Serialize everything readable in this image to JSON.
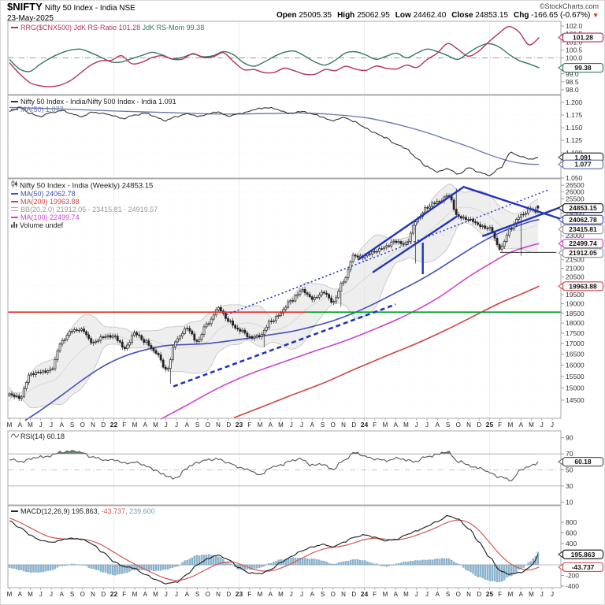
{
  "header": {
    "symbol": "$NIFTY",
    "name": "Nifty 50 Index - India NSE",
    "date": "23-May-2025",
    "open_label": "Open",
    "open": "25005.35",
    "high_label": "High",
    "high": "25062.95",
    "low_label": "Low",
    "low": "24462.40",
    "close_label": "Close",
    "close": "24853.15",
    "chg_label": "Chg",
    "chg": "-166.65 (-0.67%)",
    "chg_dir": "▼",
    "credit": "©StockCharts.com"
  },
  "colors": {
    "rrg_ratio": "#b33356",
    "rrg_mom": "#35795c",
    "ratio_line": "#333333",
    "ratio_ma": "#6677aa",
    "price": "#222222",
    "ma50": "#4450b8",
    "ma100": "#cc44cc",
    "ma200": "#cc4444",
    "bb_fill": "#e3e3e3",
    "bb_edge": "#c6c6c6",
    "bb_label": "#999999",
    "green_line": "#00a033",
    "red_line": "#e03333",
    "anno_blue": "#2233bb",
    "anno_dark": "#333333",
    "rsi": "#555555",
    "rsi_fill": "#5a7d5a",
    "macd": "#222222",
    "macd_signal": "#d05858",
    "macd_hist": "#8fb8d0",
    "macd_hist_edge": "#6f9dbd",
    "grid": "#ececec",
    "panel_border": "#a8a8a8",
    "axis_text": "#333333"
  },
  "x_axis": {
    "months": [
      "M",
      "A",
      "M",
      "J",
      "J",
      "A",
      "S",
      "O",
      "N",
      "D",
      "22",
      "F",
      "M",
      "A",
      "M",
      "J",
      "J",
      "A",
      "S",
      "O",
      "N",
      "D",
      "23",
      "F",
      "M",
      "A",
      "M",
      "J",
      "J",
      "A",
      "S",
      "O",
      "N",
      "D",
      "24",
      "F",
      "M",
      "A",
      "M",
      "J",
      "J",
      "A",
      "S",
      "O",
      "N",
      "D",
      "25",
      "F",
      "M",
      "A",
      "M",
      "J",
      "J"
    ]
  },
  "chart_data": [
    {
      "type": "line",
      "panel": "rrg",
      "legend": {
        "title": "RRG($CNX500)",
        "s1": "JdK RS-Ratio",
        "v1": "101.28",
        "s2": "JdK RS-Mom",
        "v2": "99.38"
      },
      "yticks": [
        "102.0",
        "101.5",
        "101.0",
        "100.5",
        "100.0",
        "99.5",
        "99.0",
        "98.5",
        "98.0"
      ],
      "ref": 100.0,
      "series": [
        {
          "name": "JdK RS-Ratio",
          "last": 101.28,
          "values": [
            99.7,
            99.0,
            98.45,
            98.25,
            98.2,
            98.3,
            98.6,
            99.1,
            99.6,
            99.85,
            99.85,
            100.2,
            99.5,
            99.8,
            100.1,
            100.15,
            99.8,
            100.0,
            100.45,
            99.7,
            100.4,
            100.25,
            99.2,
            99.35,
            99.15,
            98.95,
            99.4,
            99.25,
            99.0,
            98.9,
            99.3,
            99.15,
            99.5,
            99.3,
            99.2,
            99.5,
            99.35,
            99.3,
            99.55,
            99.4,
            99.9,
            100.3,
            100.9,
            100.55,
            100.1,
            100.4,
            101.0,
            101.55,
            102.0,
            101.6,
            100.7,
            101.28
          ]
        },
        {
          "name": "JdK RS-Mom",
          "last": 99.38,
          "values": [
            99.9,
            99.3,
            99.15,
            99.6,
            100.0,
            100.3,
            100.5,
            100.55,
            100.3,
            100.0,
            99.7,
            99.75,
            100.0,
            100.2,
            100.4,
            100.1,
            99.85,
            100.15,
            100.3,
            99.9,
            100.35,
            100.45,
            99.9,
            99.4,
            99.6,
            100.0,
            100.3,
            100.5,
            100.2,
            99.8,
            99.5,
            99.8,
            100.3,
            100.4,
            100.2,
            99.9,
            100.1,
            100.3,
            100.0,
            100.3,
            100.55,
            100.4,
            100.15,
            99.9,
            100.3,
            100.7,
            100.9,
            100.7,
            100.2,
            99.8,
            99.6,
            99.38
          ]
        }
      ],
      "bubbles": [
        {
          "text": "101.28",
          "ck": "rrg_ratio"
        },
        {
          "text": "99.38",
          "ck": "rrg_mom"
        }
      ]
    },
    {
      "type": "line",
      "panel": "ratio",
      "legend": {
        "l1": "Nifty 50 Index - India/Nifty 500 Index - India",
        "v1": "1.091",
        "l2": "MA(50)",
        "v2": "1.077"
      },
      "yticks": [
        "1.200",
        "1.175",
        "1.150",
        "1.125",
        "1.100",
        "1.075",
        "1.050"
      ],
      "values": [
        1.183,
        1.19,
        1.178,
        1.172,
        1.18,
        1.184,
        1.177,
        1.172,
        1.181,
        1.178,
        1.173,
        1.168,
        1.175,
        1.179,
        1.171,
        1.164,
        1.172,
        1.178,
        1.172,
        1.177,
        1.181,
        1.173,
        1.177,
        1.183,
        1.188,
        1.19,
        1.183,
        1.178,
        1.182,
        1.178,
        1.17,
        1.164,
        1.17,
        1.163,
        1.15,
        1.14,
        1.13,
        1.118,
        1.108,
        1.09,
        1.072,
        1.063,
        1.068,
        1.058,
        1.07,
        1.062,
        1.055,
        1.07,
        1.1,
        1.093,
        1.087,
        1.091
      ],
      "ma_anchors": [
        [
          0,
          1.19
        ],
        [
          5,
          1.187
        ],
        [
          10,
          1.183
        ],
        [
          15,
          1.18
        ],
        [
          20,
          1.177
        ],
        [
          25,
          1.178
        ],
        [
          28,
          1.179
        ],
        [
          31,
          1.176
        ],
        [
          34,
          1.17
        ],
        [
          36,
          1.162
        ],
        [
          38,
          1.152
        ],
        [
          40,
          1.14
        ],
        [
          42,
          1.126
        ],
        [
          44,
          1.112
        ],
        [
          46,
          1.096
        ],
        [
          48,
          1.083
        ],
        [
          49.5,
          1.078
        ],
        [
          50.75,
          1.077
        ]
      ],
      "bubbles": [
        {
          "text": "1.091",
          "ck": "ratio_line"
        },
        {
          "text": "1.077",
          "ck": "ratio_ma"
        }
      ]
    },
    {
      "type": "candlestick",
      "panel": "price",
      "scale": "log",
      "legend": {
        "title": "Nifty 50 Index - India (Weekly)",
        "last": "24853.15",
        "ma50_label": "MA(50)",
        "ma50": "24062.78",
        "ma200_label": "MA(200)",
        "ma200": "19963.88",
        "bb_label": "BB(20,2.0)",
        "bb": "21912.05 - 23415.81 - 24919.57",
        "ma100_label": "MA(100)",
        "ma100": "22499.74",
        "vol_label": "Volume",
        "vol": "undef"
      },
      "yticks": [
        "14500",
        "15000",
        "15500",
        "16000",
        "16500",
        "17000",
        "17500",
        "18000",
        "18500",
        "19000",
        "19500",
        "20000",
        "20500",
        "21000",
        "21500",
        "22000",
        "22500",
        "23000",
        "23500",
        "24000",
        "24500",
        "25000",
        "25500",
        "26000",
        "26500"
      ],
      "monthly_closes": [
        14691,
        14631,
        15583,
        15722,
        15763,
        17132,
        17618,
        17672,
        16983,
        17354,
        17340,
        16794,
        17465,
        17103,
        16585,
        15780,
        17158,
        17759,
        17094,
        18012,
        18758,
        18105,
        17662,
        17304,
        17360,
        18065,
        18534,
        19189,
        19754,
        19254,
        19638,
        19080,
        20268,
        21731,
        21726,
        21983,
        22327,
        22605,
        22531,
        24011,
        24951,
        25236,
        25811,
        24205,
        24131,
        23645,
        23508,
        22125,
        23519,
        24334,
        24853.15
      ],
      "final_week": {
        "open": 25005.35,
        "high": 25062.95,
        "low": 24462.4,
        "close": 24853.15
      },
      "overrides": [
        {
          "m": 15.5,
          "low": 15183
        },
        {
          "m": 24.3,
          "low": 16828
        },
        {
          "m": 31.8,
          "low": 18838
        },
        {
          "m": 39.0,
          "low": 21281
        },
        {
          "m": 42.8,
          "high": 26277
        },
        {
          "m": 49.1,
          "low": 21744
        }
      ],
      "ma50_anchors": [
        [
          1.5,
          13700
        ],
        [
          3,
          14100
        ],
        [
          5,
          14700
        ],
        [
          7,
          15350
        ],
        [
          9,
          15950
        ],
        [
          11,
          16400
        ],
        [
          13,
          16700
        ],
        [
          15,
          16900
        ],
        [
          17,
          16950
        ],
        [
          19,
          17000
        ],
        [
          21,
          17120
        ],
        [
          23,
          17260
        ],
        [
          25,
          17420
        ],
        [
          27,
          17580
        ],
        [
          29,
          17820
        ],
        [
          31,
          18120
        ],
        [
          33,
          18520
        ],
        [
          35,
          19020
        ],
        [
          37,
          19600
        ],
        [
          39,
          20200
        ],
        [
          41,
          20900
        ],
        [
          43,
          21700
        ],
        [
          45,
          22500
        ],
        [
          47,
          23200
        ],
        [
          48.5,
          23600
        ],
        [
          50,
          23950
        ],
        [
          50.75,
          24062.78
        ]
      ],
      "ma100_anchors": [
        [
          14.5,
          13750
        ],
        [
          17,
          14300
        ],
        [
          20,
          15000
        ],
        [
          23,
          15600
        ],
        [
          26,
          16100
        ],
        [
          29,
          16600
        ],
        [
          32,
          17100
        ],
        [
          35,
          17700
        ],
        [
          38,
          18400
        ],
        [
          41,
          19300
        ],
        [
          44,
          20500
        ],
        [
          46,
          21250
        ],
        [
          48,
          21950
        ],
        [
          50,
          22380
        ],
        [
          50.75,
          22499.74
        ]
      ],
      "ma200_anchors": [
        [
          21.5,
          13800
        ],
        [
          24,
          14200
        ],
        [
          27,
          14700
        ],
        [
          30,
          15200
        ],
        [
          33,
          15800
        ],
        [
          36,
          16400
        ],
        [
          39,
          17000
        ],
        [
          42,
          17700
        ],
        [
          45,
          18500
        ],
        [
          47,
          19050
        ],
        [
          49,
          19520
        ],
        [
          50.75,
          19963.88
        ]
      ],
      "annotations": [
        {
          "kind": "seg",
          "ck": "red_line",
          "p": [
            [
              -0.15,
              18560
            ],
            [
              28.4,
              18560
            ]
          ],
          "w": 1.8
        },
        {
          "kind": "seg",
          "ck": "green_line",
          "p": [
            [
              28.4,
              18560
            ],
            [
              52.9,
              18560
            ]
          ],
          "w": 1.8
        },
        {
          "kind": "seg",
          "ck": "anno_blue",
          "p": [
            [
              33.4,
              21500
            ],
            [
              43.6,
              26420
            ]
          ],
          "w": 2.4
        },
        {
          "kind": "seg",
          "ck": "anno_blue",
          "p": [
            [
              34.8,
              20750
            ],
            [
              42.9,
              24300
            ]
          ],
          "w": 2.4
        },
        {
          "kind": "seg",
          "ck": "anno_blue",
          "p": [
            [
              39.6,
              20650
            ],
            [
              39.6,
              22550
            ]
          ],
          "w": 2.4
        },
        {
          "kind": "seg",
          "ck": "anno_blue",
          "p": [
            [
              43.6,
              26350
            ],
            [
              53.3,
              24000
            ]
          ],
          "w": 2.4
        },
        {
          "kind": "seg",
          "ck": "anno_blue",
          "p": [
            [
              45.3,
              22970
            ],
            [
              53.3,
              25050
            ]
          ],
          "w": 2.4
        },
        {
          "kind": "seg",
          "ck": "anno_blue",
          "dash": "2,3",
          "p": [
            [
              20.8,
              18430
            ],
            [
              51.6,
              26150
            ]
          ],
          "w": 1.5
        },
        {
          "kind": "seg",
          "ck": "anno_blue",
          "dash": "6,4",
          "p": [
            [
              15.7,
              15070
            ],
            [
              37.0,
              18970
            ]
          ],
          "w": 2.6
        },
        {
          "kind": "seg",
          "ck": "anno_dark",
          "p": [
            [
              47.0,
              21950
            ],
            [
              52.4,
              21950
            ]
          ],
          "w": 1.1
        }
      ],
      "bubbles": [
        {
          "text": "24853.15",
          "ck": "price"
        },
        {
          "text": "24062.78",
          "ck": "ma50"
        },
        {
          "text": "23415.81",
          "ck": "bb_label"
        },
        {
          "text": "22499.74",
          "ck": "ma100"
        },
        {
          "text": "21912.05",
          "ck": "bb_label"
        },
        {
          "text": "19963.88",
          "ck": "ma200"
        }
      ]
    },
    {
      "type": "line",
      "panel": "rsi",
      "legend": {
        "label": "RSI(14)",
        "value": "60.18"
      },
      "yticks": [
        "90",
        "70",
        "50",
        "30",
        "10"
      ],
      "upper": 70,
      "lower": 30,
      "mid": 50,
      "values": [
        63,
        60,
        64,
        66,
        68,
        72,
        74,
        71,
        66,
        62,
        63,
        58,
        60,
        55,
        50,
        42,
        40,
        52,
        60,
        62,
        64,
        58,
        54,
        49,
        44,
        52,
        57,
        61,
        64,
        55,
        58,
        50,
        62,
        71,
        68,
        63,
        62,
        64,
        63,
        60,
        67,
        69,
        73,
        60,
        56,
        52,
        47,
        41,
        37,
        50,
        55,
        60.18
      ],
      "bubbles": [
        {
          "text": "60.18",
          "ck": "rsi"
        }
      ]
    },
    {
      "type": "macd",
      "panel": "macd",
      "legend": {
        "label": "MACD(12,26,9)",
        "v1": "195.863,",
        "v2": "-43.737,",
        "v3": "239.600"
      },
      "yticks": [
        "800",
        "600",
        "400",
        "200",
        "0",
        "-200",
        "-400"
      ],
      "macd": [
        830,
        700,
        560,
        460,
        420,
        470,
        500,
        480,
        380,
        230,
        60,
        -30,
        -70,
        -180,
        -280,
        -350,
        -330,
        -180,
        0,
        120,
        180,
        100,
        -60,
        -150,
        -170,
        -90,
        40,
        160,
        260,
        340,
        380,
        340,
        420,
        520,
        560,
        520,
        450,
        480,
        560,
        640,
        720,
        820,
        920,
        860,
        680,
        430,
        140,
        -110,
        -180,
        -140,
        -30,
        195.863
      ],
      "signal": [
        880,
        800,
        700,
        600,
        520,
        490,
        485,
        485,
        450,
        370,
        250,
        130,
        20,
        -80,
        -170,
        -260,
        -300,
        -270,
        -180,
        -70,
        20,
        70,
        20,
        -60,
        -120,
        -120,
        -60,
        30,
        130,
        230,
        300,
        330,
        360,
        420,
        480,
        500,
        480,
        470,
        500,
        560,
        630,
        710,
        800,
        840,
        800,
        660,
        440,
        210,
        30,
        -70,
        -100,
        -43.737
      ],
      "bubbles": [
        {
          "text": "195.863",
          "ck": "macd"
        },
        {
          "text": "-43.737",
          "ck": "macd_signal"
        }
      ]
    }
  ]
}
